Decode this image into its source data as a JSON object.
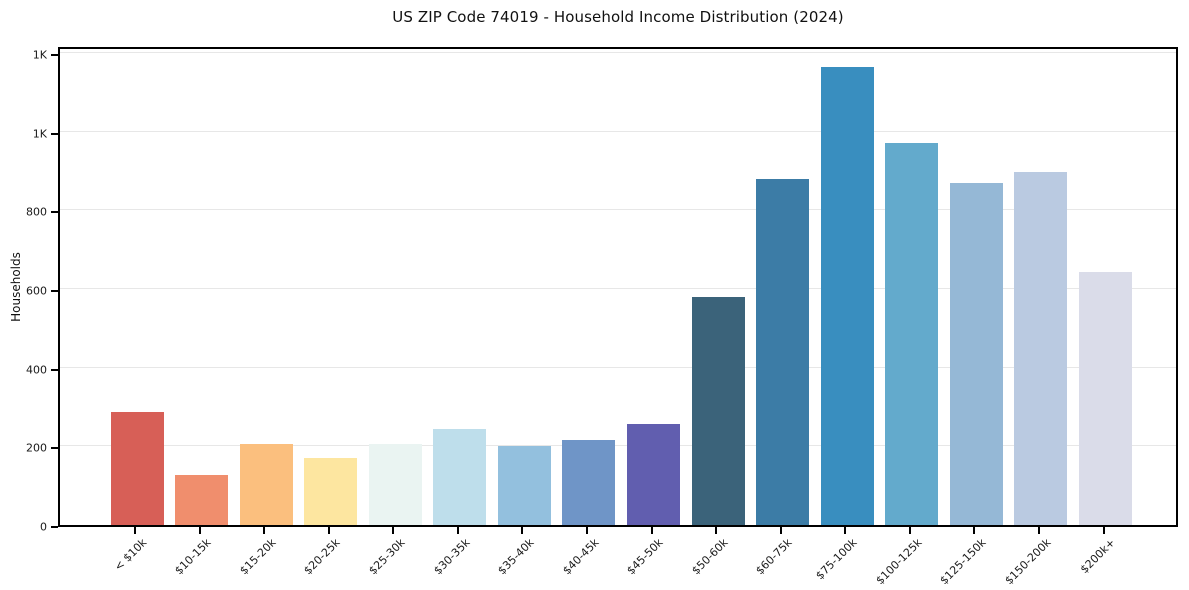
{
  "chart_data": {
    "type": "bar",
    "title": "US ZIP Code 74019 - Household Income Distribution (2024)",
    "xlabel": "",
    "ylabel": "Households",
    "categories": [
      "< $10k",
      "$10-15k",
      "$15-20k",
      "$20-25k",
      "$25-30k",
      "$30-35k",
      "$35-40k",
      "$40-45k",
      "$45-50k",
      "$50-60k",
      "$60-75k",
      "$75-100k",
      "$100-125k",
      "$125-150k",
      "$150-200k",
      "$200k+"
    ],
    "values": [
      287,
      126,
      205,
      170,
      206,
      243,
      202,
      216,
      258,
      580,
      880,
      1163,
      971,
      869,
      897,
      642
    ],
    "bar_colors": [
      "#d65a52",
      "#f08a68",
      "#fbbd7a",
      "#fde59d",
      "#e9f4f2",
      "#bcddea",
      "#90bedd",
      "#6a92c5",
      "#5c59ac",
      "#355e76",
      "#3678a3",
      "#338abd",
      "#5ea7ca",
      "#92b6d5",
      "#b8c8e0",
      "#d9dbe8"
    ],
    "y_ticks": {
      "values": [
        0,
        200,
        400,
        600,
        800,
        1000,
        1200
      ],
      "labels": [
        "0",
        "200",
        "400",
        "600",
        "800",
        "1K",
        "1K"
      ]
    },
    "ylim": [
      0,
      1220
    ],
    "grid": "horizontal",
    "legend": "none"
  },
  "figure": {
    "background": "#ffffff",
    "grid_color": "#e7e7e7",
    "spine_color": "#000000",
    "text_color": "#1a1a1a"
  }
}
